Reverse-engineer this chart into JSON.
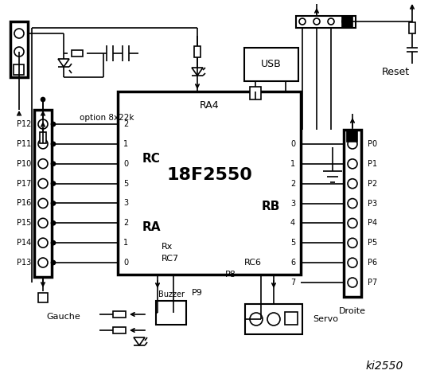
{
  "title": "ki2550",
  "bg_color": "#ffffff",
  "chip_label": "18F2550",
  "chip_sublabel": "RA4",
  "rc_label": "RC",
  "ra_label": "RA",
  "rb_label": "RB",
  "rc_pins": [
    "2",
    "1",
    "0",
    "5",
    "3",
    "2",
    "1",
    "0"
  ],
  "rc_pin_labels": [
    "P12",
    "P11",
    "P10",
    "P17",
    "P16",
    "P15",
    "P14",
    "P13"
  ],
  "rb_pins": [
    "0",
    "1",
    "2",
    "3",
    "4",
    "5",
    "6",
    "7"
  ],
  "rb_pin_labels": [
    "P0",
    "P1",
    "P2",
    "P3",
    "P4",
    "P5",
    "P6",
    "P7"
  ],
  "left_label": "Gauche",
  "right_label": "Droite",
  "reset_label": "Reset",
  "option_label": "option 8x22k",
  "rx_label": "Rx",
  "rc7_label": "RC7",
  "rc6_label": "RC6",
  "usb_label": "USB",
  "buzzer_label": "Buzzer",
  "p9_label": "P9",
  "p8_label": "P8",
  "servo_label": "Servo"
}
